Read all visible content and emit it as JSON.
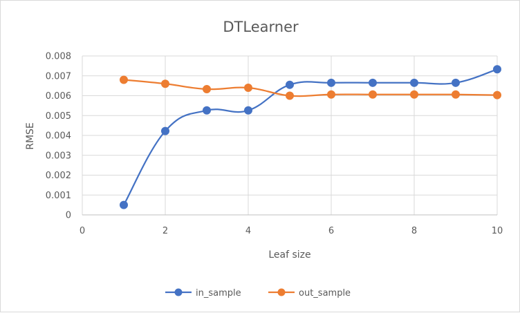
{
  "chart_data": {
    "type": "line",
    "title": "DTLearner",
    "xlabel": "Leaf size",
    "ylabel": "RMSE",
    "xlim": [
      0,
      10
    ],
    "ylim": [
      0,
      0.008
    ],
    "x_ticks": [
      "0",
      "2",
      "4",
      "6",
      "8",
      "10"
    ],
    "y_ticks": [
      "0",
      "0.001",
      "0.002",
      "0.003",
      "0.004",
      "0.005",
      "0.006",
      "0.007",
      "0.008"
    ],
    "x": [
      1,
      2,
      3,
      4,
      5,
      6,
      7,
      8,
      9,
      10
    ],
    "series": [
      {
        "name": "in_sample",
        "color": "#4472c4",
        "values": [
          0.0005,
          0.00422,
          0.00526,
          0.00526,
          0.00655,
          0.00665,
          0.00665,
          0.00665,
          0.00665,
          0.00733
        ]
      },
      {
        "name": "out_sample",
        "color": "#ed7d31",
        "values": [
          0.0068,
          0.0066,
          0.00633,
          0.0064,
          0.006,
          0.00606,
          0.00606,
          0.00606,
          0.00606,
          0.00603
        ]
      }
    ],
    "grid": true,
    "smooth": true,
    "legend_position": "bottom"
  }
}
